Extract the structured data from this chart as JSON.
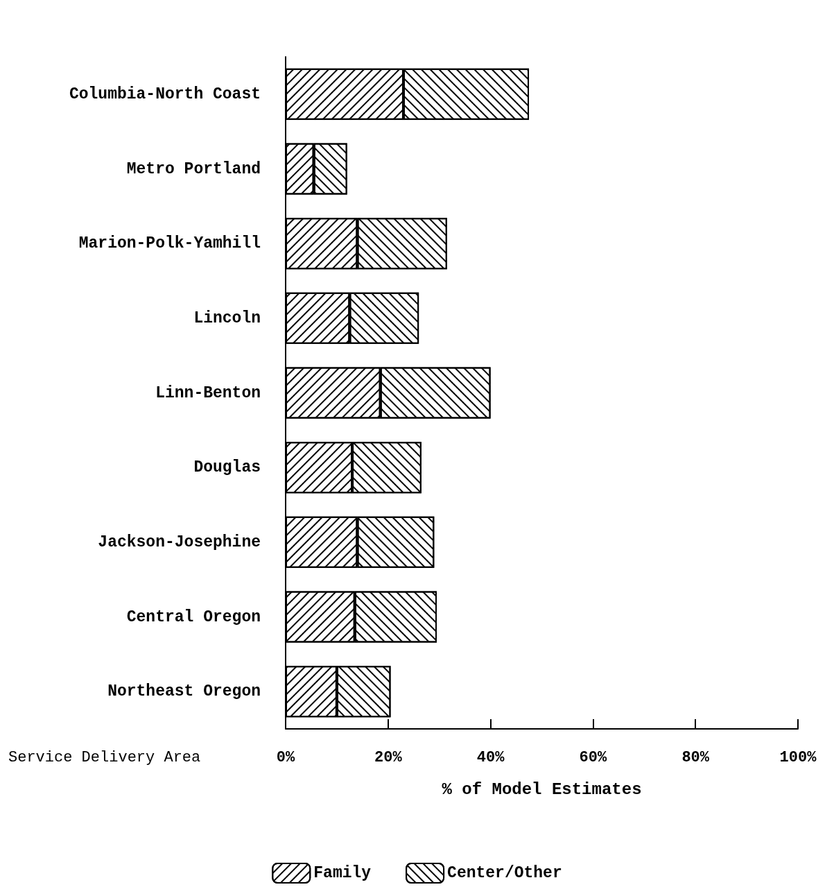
{
  "chart_data": {
    "type": "bar",
    "orientation": "horizontal",
    "stacked": true,
    "ylabel": "Service Delivery Area",
    "xlabel": "% of Model Estimates",
    "categories": [
      "Columbia-North Coast",
      "Metro Portland",
      "Marion-Polk-Yamhill",
      "Lincoln",
      "Linn-Benton",
      "Douglas",
      "Jackson-Josephine",
      "Central Oregon",
      "Northeast Oregon"
    ],
    "series": [
      {
        "name": "Family",
        "color": "#ffffff",
        "values": [
          23,
          5.5,
          14,
          12.5,
          18.5,
          13,
          14,
          13.5,
          10
        ]
      },
      {
        "name": "Center/Other",
        "color": "#ffffff",
        "values": [
          24.5,
          6.5,
          17.5,
          13.5,
          21.5,
          13.5,
          15,
          16,
          10.5
        ]
      }
    ],
    "xlim": [
      0,
      100
    ],
    "xticks": [
      {
        "value": 0,
        "label": "0%"
      },
      {
        "value": 20,
        "label": "20%"
      },
      {
        "value": 40,
        "label": "40%"
      },
      {
        "value": 60,
        "label": "60%"
      },
      {
        "value": 80,
        "label": "80%"
      },
      {
        "value": 100,
        "label": "100%"
      }
    ],
    "grid": false,
    "legend": "bottom"
  }
}
